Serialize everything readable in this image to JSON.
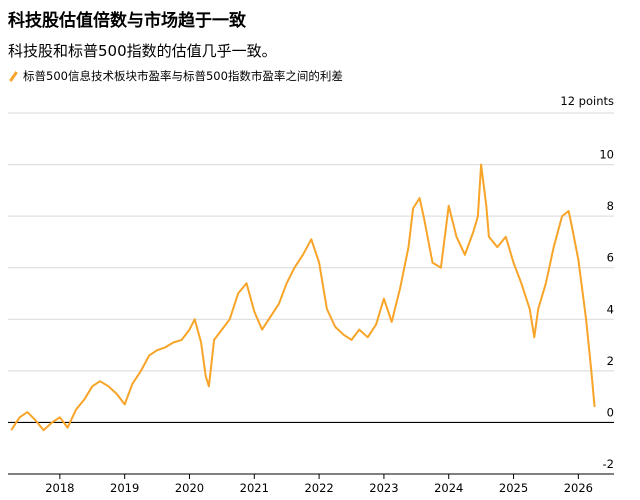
{
  "title": "科技股估值倍数与市场趋于一致",
  "subtitle": "科技股和标普500指数的估值几乎一致。",
  "colors": {
    "series": "#f7a428",
    "grid": "#d9d9d9",
    "zero": "#000000"
  },
  "chart_data": {
    "type": "line",
    "title": "科技股估值倍数与市场趋于一致",
    "subtitle": "科技股和标普500指数的估值几乎一致。",
    "unit_label": "12 points",
    "y_ticks": [
      "10",
      "8",
      "6",
      "4",
      "2",
      "0",
      "-2"
    ],
    "x_ticks": [
      "2018",
      "2019",
      "2020",
      "2021",
      "2022",
      "2023",
      "2024",
      "2025",
      "2026"
    ],
    "xlim": [
      2017.2,
      2026.55
    ],
    "ylim": [
      -2,
      12
    ],
    "grid": true,
    "series": [
      {
        "name": "标普500信息技术板块市盈率与标普500指数市盈率之间的利差",
        "color": "#f7a428",
        "x": [
          2017.25,
          2017.38,
          2017.5,
          2017.62,
          2017.75,
          2017.88,
          2018.0,
          2018.12,
          2018.25,
          2018.38,
          2018.5,
          2018.62,
          2018.75,
          2018.88,
          2019.0,
          2019.12,
          2019.25,
          2019.38,
          2019.5,
          2019.62,
          2019.75,
          2019.88,
          2020.0,
          2020.08,
          2020.18,
          2020.25,
          2020.3,
          2020.38,
          2020.5,
          2020.62,
          2020.75,
          2020.88,
          2021.0,
          2021.12,
          2021.25,
          2021.38,
          2021.5,
          2021.62,
          2021.75,
          2021.88,
          2022.0,
          2022.12,
          2022.25,
          2022.38,
          2022.5,
          2022.62,
          2022.75,
          2022.88,
          2023.0,
          2023.12,
          2023.25,
          2023.38,
          2023.45,
          2023.55,
          2023.62,
          2023.75,
          2023.88,
          2024.0,
          2024.12,
          2024.25,
          2024.38,
          2024.45,
          2024.5,
          2024.58,
          2024.62,
          2024.75,
          2024.88,
          2025.0,
          2025.12,
          2025.25,
          2025.32,
          2025.38,
          2025.5,
          2025.62,
          2025.75,
          2025.85,
          2025.9,
          2026.0,
          2026.12,
          2026.2,
          2026.25
        ],
        "y": [
          -0.3,
          0.2,
          0.4,
          0.1,
          -0.3,
          0.0,
          0.2,
          -0.2,
          0.5,
          0.9,
          1.4,
          1.6,
          1.4,
          1.1,
          0.7,
          1.5,
          2.0,
          2.6,
          2.8,
          2.9,
          3.1,
          3.2,
          3.6,
          4.0,
          3.1,
          1.8,
          1.4,
          3.2,
          3.6,
          4.0,
          5.0,
          5.4,
          4.3,
          3.6,
          4.1,
          4.6,
          5.4,
          6.0,
          6.5,
          7.1,
          6.2,
          4.4,
          3.7,
          3.4,
          3.2,
          3.6,
          3.3,
          3.8,
          4.8,
          3.9,
          5.2,
          6.8,
          8.3,
          8.7,
          7.9,
          6.2,
          6.0,
          8.4,
          7.2,
          6.5,
          7.4,
          8.0,
          10.0,
          8.4,
          7.2,
          6.8,
          7.2,
          6.2,
          5.4,
          4.4,
          3.3,
          4.4,
          5.4,
          6.8,
          8.0,
          8.2,
          7.6,
          6.3,
          4.0,
          2.0,
          0.6
        ]
      }
    ]
  }
}
